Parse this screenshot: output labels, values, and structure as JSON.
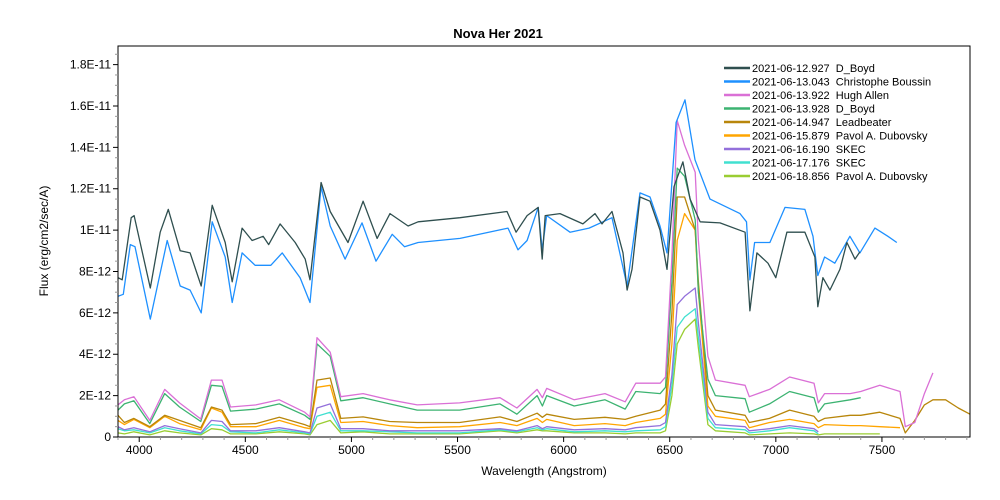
{
  "chart_data": {
    "type": "line",
    "title": "Nova Her 2021",
    "xlabel": "Wavelength (Angstrom)",
    "ylabel": "Flux (erg/cm2/sec/A)",
    "xlim": [
      3900,
      7915
    ],
    "ylim": [
      0,
      1.89e-11
    ],
    "grid": false,
    "legend_position": "top-right",
    "x_ticks": [
      4000,
      4500,
      5000,
      5500,
      6000,
      6500,
      7000,
      7500
    ],
    "x_tick_labels": [
      "4000",
      "4500",
      "5000",
      "5500",
      "6000",
      "6500",
      "7000",
      "7500"
    ],
    "y_ticks": [
      0,
      2e-12,
      4e-12,
      6e-12,
      8e-12,
      1e-11,
      1.2e-11,
      1.4e-11,
      1.6e-11,
      1.8e-11
    ],
    "y_tick_labels": [
      "0",
      "2E-12",
      "4E-12",
      "6E-12",
      "8E-12",
      "1E-11",
      "1.2E-11",
      "1.4E-11",
      "1.6E-11",
      "1.8E-11"
    ],
    "x": [
      3900,
      3930,
      3975,
      4050,
      4120,
      4190,
      4290,
      4340,
      4390,
      4430,
      4550,
      4660,
      4780,
      4805,
      4838,
      4900,
      4950,
      5055,
      5180,
      5310,
      5510,
      5700,
      5780,
      5875,
      5900,
      5920,
      6050,
      6195,
      6290,
      6340,
      6455,
      6480,
      6510,
      6535,
      6570,
      6620,
      6635,
      6680,
      6715,
      6855,
      6875,
      6970,
      7065,
      7180,
      7200,
      7230,
      7350,
      7400,
      7490,
      7585,
      7610,
      7655,
      7700,
      7740,
      7800,
      7860,
      7915
    ],
    "series": [
      {
        "name": "2021-06-12.927  D_Boyd",
        "color": "#2F4F4F",
        "x": [
          3900,
          3920,
          3962,
          3976,
          4052,
          4099,
          4137,
          4193,
          4240,
          4292,
          4344,
          4405,
          4438,
          4485,
          4532,
          4584,
          4610,
          4664,
          4735,
          4782,
          4805,
          4857,
          4900,
          4984,
          5055,
          5121,
          5182,
          5267,
          5314,
          5512,
          5733,
          5776,
          5828,
          5880,
          5899,
          5913,
          5983,
          6091,
          6148,
          6181,
          6228,
          6280,
          6299,
          6322,
          6360,
          6407,
          6454,
          6487,
          6520,
          6562,
          6596,
          6643,
          6737,
          6855,
          6878,
          6911,
          6963,
          7000,
          7052,
          7137,
          7184,
          7198,
          7222,
          7255,
          7302,
          7335,
          7373,
          7396
        ],
        "values": [
          7.7e-12,
          7.6e-12,
          1.06e-11,
          1.07e-11,
          7.2e-12,
          9.9e-12,
          1.1e-11,
          9e-12,
          8.9e-12,
          7.3e-12,
          1.12e-11,
          9.4e-12,
          7.5e-12,
          1.01e-11,
          9.5e-12,
          9.7e-12,
          9.3e-12,
          1.03e-11,
          9.4e-12,
          8.6e-12,
          7.6e-12,
          1.23e-11,
          1.09e-11,
          9.4e-12,
          1.14e-11,
          9.6e-12,
          1.08e-11,
          1.02e-11,
          1.04e-11,
          1.06e-11,
          1.09e-11,
          9.9e-12,
          1.07e-11,
          1.11e-11,
          8.6e-12,
          1.07e-11,
          1.08e-11,
          1.03e-11,
          1.08e-11,
          1.03e-11,
          1.09e-11,
          8.9e-12,
          7.1e-12,
          8.1e-12,
          1.16e-11,
          1.14e-11,
          1e-11,
          8.1e-12,
          1.21e-11,
          1.33e-11,
          1.15e-11,
          1.04e-11,
          1.035e-11,
          9.9e-12,
          6.1e-12,
          8.9e-12,
          8.4e-12,
          7.7e-12,
          9.9e-12,
          9.9e-12,
          8.7e-12,
          6.3e-12,
          7.7e-12,
          7.1e-12,
          8.1e-12,
          9.4e-12,
          8.6e-12,
          8.95e-12
        ]
      },
      {
        "name": "2021-06-13.043  Christophe Boussin",
        "color": "#1E90FF",
        "x": [
          3900,
          3925,
          3958,
          3980,
          4052,
          4132,
          4193,
          4240,
          4292,
          4344,
          4405,
          4438,
          4485,
          4546,
          4620,
          4674,
          4758,
          4805,
          4857,
          4900,
          4970,
          5050,
          5116,
          5192,
          5250,
          5314,
          5512,
          5738,
          5785,
          5828,
          5880,
          5899,
          5920,
          6030,
          6120,
          6228,
          6299,
          6360,
          6407,
          6454,
          6487,
          6530,
          6572,
          6619,
          6690,
          6831,
          6862,
          6878,
          6900,
          6972,
          7043,
          7137,
          7175,
          7198,
          7230,
          7278,
          7349,
          7396,
          7467,
          7528,
          7570
        ],
        "values": [
          6.8e-12,
          6.9e-12,
          9.3e-12,
          9.2e-12,
          5.7e-12,
          9.5e-12,
          7.3e-12,
          7.1e-12,
          6e-12,
          1.04e-11,
          8.7e-12,
          6.5e-12,
          8.9e-12,
          8.3e-12,
          8.3e-12,
          8.9e-12,
          7.7e-12,
          6.5e-12,
          1.21e-11,
          1.02e-11,
          8.6e-12,
          1.035e-11,
          8.5e-12,
          9.8e-12,
          9.2e-12,
          9.4e-12,
          9.6e-12,
          1.01e-11,
          9.05e-12,
          9.5e-12,
          1.11e-11,
          9.05e-12,
          1.07e-11,
          9.9e-12,
          1.01e-11,
          1.06e-11,
          7.3e-12,
          1.18e-11,
          1.16e-11,
          1.02e-11,
          8.9e-12,
          1.52e-11,
          1.63e-11,
          1.34e-11,
          1.15e-11,
          1.08e-11,
          1.04e-11,
          7.6e-12,
          9.4e-12,
          9.4e-12,
          1.11e-11,
          1.1e-11,
          9.7e-12,
          7.8e-12,
          8.7e-12,
          8.4e-12,
          9.7e-12,
          8.9e-12,
          1.01e-11,
          9.7e-12,
          9.4e-12
        ]
      },
      {
        "name": "2021-06-13.922  Hugh Allen",
        "color": "#DA70D6",
        "values": [
          1.55e-12,
          1.8e-12,
          1.95e-12,
          8e-13,
          2.3e-12,
          1.65e-12,
          8.7e-13,
          2.75e-12,
          2.75e-12,
          1.45e-12,
          1.55e-12,
          1.8e-12,
          1.2e-12,
          9.7e-13,
          4.8e-12,
          4.1e-12,
          1.95e-12,
          2.1e-12,
          1.8e-12,
          1.55e-12,
          1.65e-12,
          1.9e-12,
          1.4e-12,
          2.3e-12,
          1.9e-12,
          2.35e-12,
          1.8e-12,
          2.1e-12,
          1.7e-12,
          2.6e-12,
          2.6e-12,
          2.9e-12,
          8.7e-12,
          1.53e-11,
          1.41e-11,
          1.28e-11,
          9.5e-12,
          3.9e-12,
          2.75e-12,
          2.5e-12,
          1.95e-12,
          2.3e-12,
          2.9e-12,
          2.6e-12,
          1.65e-12,
          2.1e-12,
          2.1e-12,
          2.2e-12,
          2.5e-12,
          2.2e-12,
          5e-13,
          7e-13,
          2.1e-12,
          3.1e-12,
          null,
          null,
          null
        ]
      },
      {
        "name": "2021-06-13.928  D_Boyd",
        "color": "#3CB371",
        "values": [
          1.3e-12,
          1.6e-12,
          1.75e-12,
          6.5e-13,
          2.1e-12,
          1.45e-12,
          7.5e-13,
          2.5e-12,
          2.45e-12,
          1.25e-12,
          1.35e-12,
          1.6e-12,
          1.05e-12,
          8.5e-13,
          4.5e-12,
          3.9e-12,
          1.75e-12,
          1.9e-12,
          1.6e-12,
          1.3e-12,
          1.3e-12,
          1.6e-12,
          1.1e-12,
          2e-12,
          1.5e-12,
          2e-12,
          1.5e-12,
          1.8e-12,
          1.35e-12,
          2.2e-12,
          2.1e-12,
          2.4e-12,
          7.5e-12,
          1.3e-11,
          1.26e-11,
          1.05e-11,
          7e-12,
          2.8e-12,
          2e-12,
          1.85e-12,
          1.2e-12,
          1.6e-12,
          2.2e-12,
          1.9e-12,
          1.2e-12,
          1.6e-12,
          1.8e-12,
          1.9e-12,
          null,
          null,
          null,
          null,
          null,
          null,
          null,
          null,
          null
        ]
      },
      {
        "name": "2021-06-14.947  Leadbeater",
        "color": "#B8860B",
        "values": [
          1.05e-12,
          7e-13,
          9e-13,
          5e-13,
          1.05e-12,
          8e-13,
          4.5e-13,
          1.45e-12,
          1.3e-12,
          6e-13,
          6.5e-13,
          9.5e-13,
          6e-13,
          5e-13,
          2.75e-12,
          2.85e-12,
          9e-13,
          9.7e-13,
          7.5e-13,
          7e-13,
          7e-13,
          9.7e-13,
          7.5e-13,
          1.15e-12,
          9.5e-13,
          1.1e-12,
          8.5e-13,
          9.5e-13,
          8.5e-13,
          1e-12,
          1.3e-12,
          1.6e-12,
          6e-12,
          1.16e-11,
          1.16e-11,
          1e-11,
          7.5e-12,
          2e-12,
          1.3e-12,
          1.05e-12,
          7e-13,
          9e-13,
          1.3e-12,
          1e-12,
          7.5e-13,
          9e-13,
          1.05e-12,
          1.05e-12,
          1.2e-12,
          9e-13,
          2e-13,
          8e-13,
          1.55e-12,
          1.8e-12,
          1.8e-12,
          1.4e-12,
          1.1e-12
        ]
      },
      {
        "name": "2021-06-15.879  Pavol A. Dubovsky",
        "color": "#FFA500",
        "values": [
          8e-13,
          6e-13,
          8.5e-13,
          4.5e-13,
          1e-12,
          6.5e-13,
          3.5e-13,
          1.4e-12,
          1.2e-12,
          5e-13,
          5e-13,
          8e-13,
          4.5e-13,
          4e-13,
          2.4e-12,
          2.5e-12,
          7e-13,
          7.5e-13,
          5.5e-13,
          4.5e-13,
          5e-13,
          7e-13,
          5.5e-13,
          9e-13,
          7e-13,
          8.5e-13,
          5.5e-13,
          6.5e-13,
          5.5e-13,
          7e-13,
          9e-13,
          1.1e-12,
          4.5e-12,
          9.5e-12,
          1.08e-11,
          1e-11,
          7e-12,
          1.5e-12,
          1e-12,
          8e-13,
          4.5e-13,
          7e-13,
          8.5e-13,
          6.5e-13,
          4.5e-13,
          6e-13,
          5.5e-13,
          5.5e-13,
          5e-13,
          4.5e-13,
          null,
          null,
          null,
          null,
          null,
          null,
          null
        ]
      },
      {
        "name": "2021-06-16.190  SKEC",
        "color": "#9370DB",
        "values": [
          5e-13,
          3.5e-13,
          4.5e-13,
          2.5e-13,
          5.5e-13,
          4e-13,
          2e-13,
          8e-13,
          7.5e-13,
          3e-13,
          3e-13,
          4.5e-13,
          2.5e-13,
          2e-13,
          1.4e-12,
          1.6e-12,
          4e-13,
          4e-13,
          3e-13,
          3e-13,
          3e-13,
          4e-13,
          3e-13,
          5.5e-13,
          4e-13,
          5e-13,
          3.5e-13,
          4e-13,
          3.5e-13,
          4.5e-13,
          5.5e-13,
          7e-13,
          3e-12,
          6.4e-12,
          6.8e-12,
          7.2e-12,
          5.5e-12,
          1.2e-12,
          6e-13,
          5e-13,
          3e-13,
          4e-13,
          5.5e-13,
          4e-13,
          2.5e-13,
          null,
          null,
          null,
          null,
          null,
          null,
          null,
          null,
          null,
          null,
          null,
          null
        ]
      },
      {
        "name": "2021-06-17.176  SKEC",
        "color": "#40E0D0",
        "values": [
          4e-13,
          3e-13,
          3.5e-13,
          2e-13,
          4.5e-13,
          3e-13,
          1.5e-13,
          6e-13,
          5.5e-13,
          2.5e-13,
          2e-13,
          3.5e-13,
          2e-13,
          1.5e-13,
          1e-12,
          1.2e-12,
          3e-13,
          3e-13,
          2.5e-13,
          2e-13,
          2e-13,
          3.5e-13,
          2.5e-13,
          4.5e-13,
          3.5e-13,
          4e-13,
          2.5e-13,
          3e-13,
          2.5e-13,
          3e-13,
          3.5e-13,
          5e-13,
          2.5e-12,
          5.3e-12,
          5.8e-12,
          6.2e-12,
          4.8e-12,
          9e-13,
          4.5e-13,
          3.5e-13,
          2e-13,
          3e-13,
          4.5e-13,
          3e-13,
          1.5e-13,
          null,
          null,
          null,
          null,
          null,
          null,
          null,
          null,
          null,
          null,
          null,
          null
        ]
      },
      {
        "name": "2021-06-18.856  Pavol A. Dubovsky",
        "color": "#9ACD32",
        "values": [
          2e-13,
          1.5e-13,
          2.5e-13,
          1e-13,
          3e-13,
          2e-13,
          1e-13,
          4e-13,
          3.5e-13,
          1.5e-13,
          1.5e-13,
          2.5e-13,
          1.5e-13,
          1e-13,
          6e-13,
          8e-13,
          2e-13,
          2.5e-13,
          1.5e-13,
          1.5e-13,
          1.5e-13,
          3e-13,
          2e-13,
          3.5e-13,
          3e-13,
          3e-13,
          2e-13,
          2e-13,
          1.5e-13,
          2e-13,
          2e-13,
          3e-13,
          2e-12,
          4.5e-12,
          5.2e-12,
          5.7e-12,
          4.3e-12,
          6e-13,
          3e-13,
          2e-13,
          1e-13,
          1.5e-13,
          2e-13,
          1.5e-13,
          1e-13,
          1.5e-13,
          1.5e-13,
          1.5e-13,
          1.5e-13,
          null,
          null,
          null,
          null,
          null,
          null,
          null,
          null
        ]
      }
    ]
  }
}
